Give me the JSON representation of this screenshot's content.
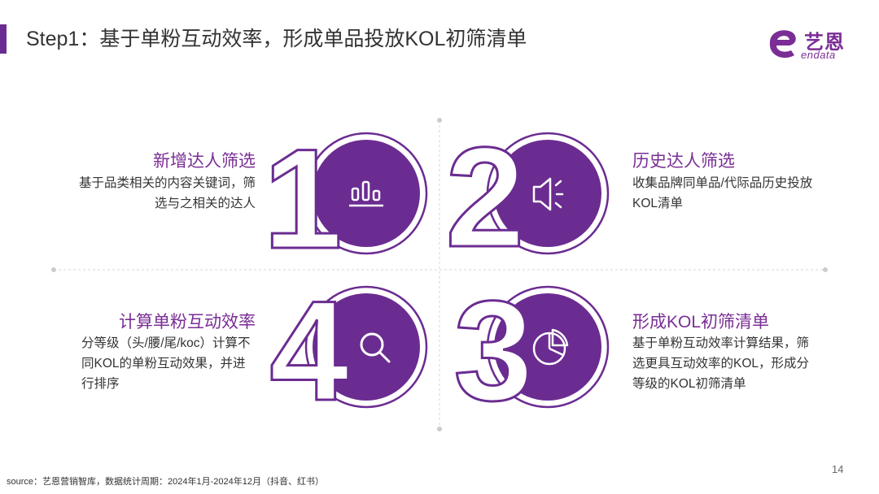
{
  "header": {
    "title": "Step1：基于单粉互动效率，形成单品投放KOL初筛清单",
    "accent_color": "#6b2c91"
  },
  "logo": {
    "cn": "艺恩",
    "en": "endata"
  },
  "steps": [
    {
      "number": "1",
      "title": "新增达人筛选",
      "desc": "基于品类相关的内容关键词，筛选与之相关的达人",
      "icon": "bar-chart-icon"
    },
    {
      "number": "2",
      "title": "历史达人筛选",
      "desc": "收集品牌同单品/代际品历史投放KOL清单",
      "icon": "megaphone-icon"
    },
    {
      "number": "3",
      "title": "形成KOL初筛清单",
      "desc": "基于单粉互动效率计算结果，筛选更具互动效率的KOL，形成分等级的KOL初筛清单",
      "icon": "pie-chart-icon"
    },
    {
      "number": "4",
      "title": "计算单粉互动效率",
      "desc": "分等级（头/腰/尾/koc）计算不同KOL的单粉互动效果，并进行排序",
      "icon": "search-icon"
    }
  ],
  "footer": {
    "source": "source：艺恩营销智库，数据统计周期：2024年1月-2024年12月（抖音、红书）",
    "page": "14"
  },
  "colors": {
    "purple": "#6b2c91",
    "purple_light": "#7a2e95"
  }
}
